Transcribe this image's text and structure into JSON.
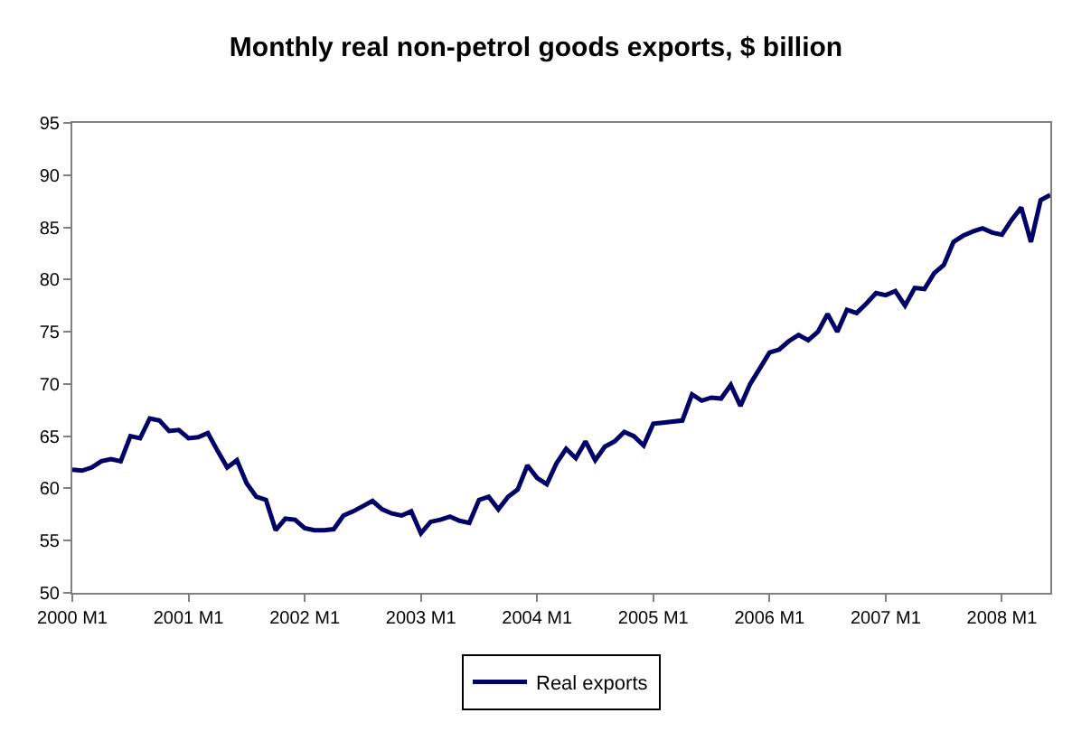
{
  "chart_data": {
    "type": "line",
    "title": "Monthly real non-petrol goods exports, $ billion",
    "categories": [
      "2000 M1",
      null,
      null,
      null,
      null,
      null,
      null,
      null,
      null,
      null,
      null,
      null,
      "2001 M1",
      null,
      null,
      null,
      null,
      null,
      null,
      null,
      null,
      null,
      null,
      null,
      "2002 M1",
      null,
      null,
      null,
      null,
      null,
      null,
      null,
      null,
      null,
      null,
      null,
      "2003 M1",
      null,
      null,
      null,
      null,
      null,
      null,
      null,
      null,
      null,
      null,
      null,
      "2004 M1",
      null,
      null,
      null,
      null,
      null,
      null,
      null,
      null,
      null,
      null,
      null,
      "2005 M1",
      null,
      null,
      null,
      null,
      null,
      null,
      null,
      null,
      null,
      null,
      null,
      "2006 M1",
      null,
      null,
      null,
      null,
      null,
      null,
      null,
      null,
      null,
      null,
      null,
      "2007 M1",
      null,
      null,
      null,
      null,
      null,
      null,
      null,
      null,
      null,
      null,
      null,
      "2008 M1",
      null,
      null,
      null,
      null,
      null
    ],
    "series": [
      {
        "name": "Real exports",
        "color": "#000066",
        "values": [
          61.8,
          61.7,
          62.0,
          62.6,
          62.8,
          62.6,
          65.0,
          64.8,
          66.7,
          66.5,
          65.5,
          65.6,
          64.8,
          64.9,
          65.3,
          63.6,
          62.0,
          62.7,
          60.5,
          59.2,
          58.9,
          56.0,
          57.1,
          57.0,
          56.2,
          56.0,
          56.0,
          56.1,
          57.4,
          57.8,
          58.3,
          58.8,
          58.0,
          57.6,
          57.4,
          57.8,
          55.7,
          56.8,
          57.0,
          57.3,
          56.9,
          56.7,
          58.9,
          59.2,
          58.0,
          59.2,
          59.9,
          62.2,
          61.0,
          60.4,
          62.4,
          63.8,
          62.9,
          64.5,
          62.7,
          64.0,
          64.5,
          65.4,
          65.0,
          64.1,
          66.2,
          66.3,
          66.4,
          66.5,
          69.0,
          68.4,
          68.7,
          68.6,
          69.9,
          67.9,
          70.0,
          71.5,
          73.0,
          73.3,
          74.1,
          74.7,
          74.2,
          75.0,
          76.7,
          75.0,
          77.1,
          76.8,
          77.7,
          78.7,
          78.5,
          78.9,
          77.5,
          79.2,
          79.1,
          80.6,
          81.4,
          83.6,
          84.2,
          84.6,
          84.9,
          84.5,
          84.3,
          85.7,
          86.9,
          83.6,
          87.6,
          88.1
        ]
      }
    ],
    "ylim": [
      50,
      95
    ],
    "yticks": [
      50,
      55,
      60,
      65,
      70,
      75,
      80,
      85,
      90,
      95
    ],
    "legend": "bottom",
    "marker": "none",
    "line_style": "solid"
  }
}
